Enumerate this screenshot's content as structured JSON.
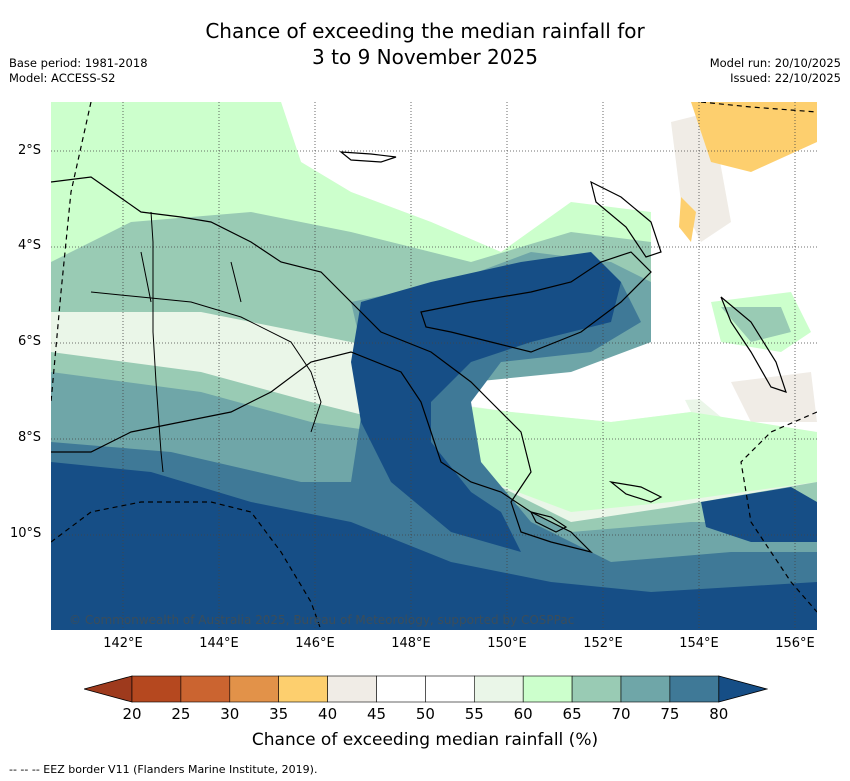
{
  "title_line1": "Chance of exceeding the median rainfall for",
  "title_line2": "3 to 9 November 2025",
  "base_period": "Base period: 1981-2018",
  "model": "Model: ACCESS-S2",
  "model_run": "Model run: 20/10/2025",
  "issued": "Issued: 22/10/2025",
  "lat_labels": [
    "2°S",
    "4°S",
    "6°S",
    "8°S",
    "10°S"
  ],
  "lon_labels": [
    "142°E",
    "144°E",
    "146°E",
    "148°E",
    "150°E",
    "152°E",
    "154°E",
    "156°E"
  ],
  "copyright": "© Commonwealth of Australia 2025, Bureau of Meteorology, supported by COSPPac",
  "colorbar": {
    "title": "Chance of exceeding median rainfall (%)",
    "ticks": [
      "20",
      "25",
      "30",
      "35",
      "40",
      "45",
      "50",
      "55",
      "60",
      "65",
      "70",
      "75",
      "80"
    ],
    "colors": [
      "#9e3a1d",
      "#b5481f",
      "#cb6430",
      "#e29249",
      "#fdcf6e",
      "#f0ece6",
      "#ffffff",
      "#ffffff",
      "#eaf6e8",
      "#ccffcc",
      "#99cbb4",
      "#6fa6a8",
      "#3f7997",
      "#164e86"
    ]
  },
  "footer": "-- -- -- EEZ border V11 (Flanders Marine Institute, 2019)."
}
